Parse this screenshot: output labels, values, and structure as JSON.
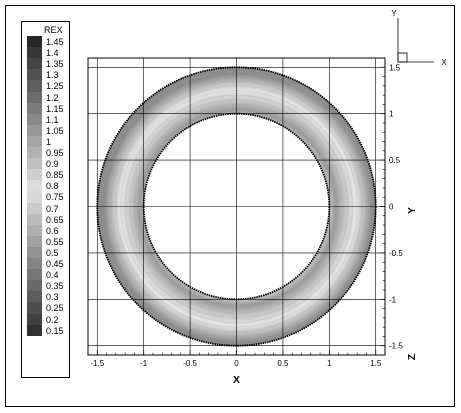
{
  "chart_data": {
    "type": "contour",
    "legend_title": "REX",
    "legend_levels": [
      "1.45",
      "1.4",
      "1.35",
      "1.3",
      "1.25",
      "1.2",
      "1.15",
      "1.1",
      "1.05",
      "1",
      "0.95",
      "0.9",
      "0.85",
      "0.8",
      "0.75",
      "0.7",
      "0.65",
      "0.6",
      "0.55",
      "0.5",
      "0.45",
      "0.4",
      "0.35",
      "0.3",
      "0.25",
      "0.2",
      "0.15"
    ],
    "legend_placement": "left",
    "xlabel": "X",
    "ylabel": "Y",
    "zlabel": "Z",
    "x_ticks": [
      "-1.5",
      "-1",
      "-0.5",
      "0",
      "0.5",
      "1",
      "1.5"
    ],
    "y_ticks": [
      "1.5",
      "1",
      "0.5",
      "0",
      "-0.5",
      "-1",
      "-1.5"
    ],
    "y_tick_values": [
      1.5,
      1,
      0.5,
      0,
      -0.5,
      -1,
      -1.5
    ],
    "x_tick_values": [
      -1.5,
      -1,
      -0.5,
      0,
      0.5,
      1,
      1.5
    ],
    "xlim": [
      -1.6,
      1.6
    ],
    "ylim": [
      -1.6,
      1.6
    ],
    "grid": true,
    "annulus": {
      "inner_radius": 1.0,
      "outer_radius": 1.5
    },
    "orientation_axes": {
      "y": "Y",
      "x": "X"
    },
    "colors": {
      "ring_fill": "#cccccc",
      "ring_dark": "#888888",
      "ring_light": "#eeeeee"
    }
  }
}
